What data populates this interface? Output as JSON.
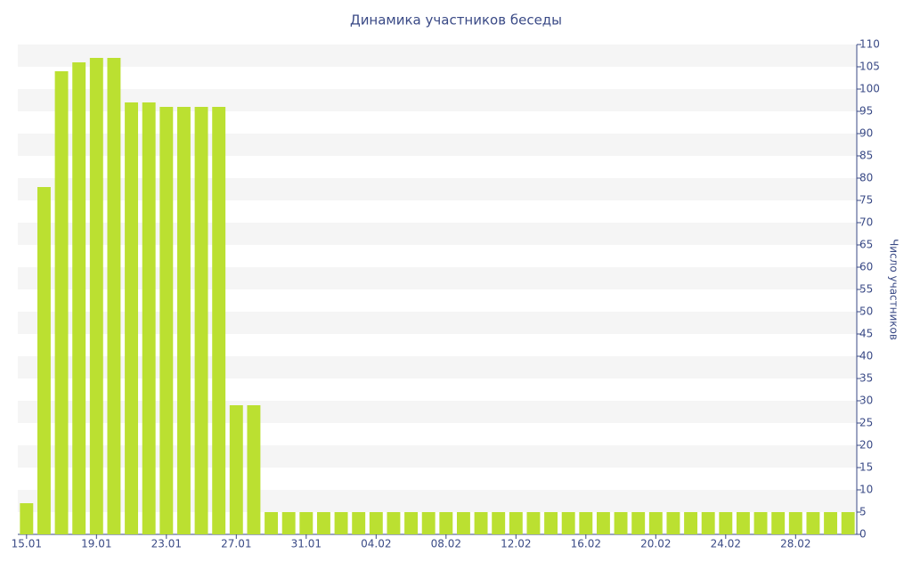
{
  "chart_data": {
    "type": "bar",
    "title": "Динамика участников беседы",
    "y_axis_label": "Число участников",
    "categories": [
      "15.01",
      null,
      null,
      null,
      "19.01",
      null,
      null,
      null,
      "23.01",
      null,
      null,
      null,
      "27.01",
      null,
      null,
      null,
      "31.01",
      null,
      null,
      null,
      "04.02",
      null,
      null,
      null,
      "08.02",
      null,
      null,
      null,
      "12.02",
      null,
      null,
      null,
      "16.02",
      null,
      null,
      null,
      "20.02",
      null,
      null,
      null,
      "24.02",
      null,
      null,
      null,
      "28.02",
      null,
      null,
      null
    ],
    "values": [
      7,
      78,
      104,
      106,
      107,
      107,
      97,
      97,
      96,
      96,
      96,
      96,
      29,
      29,
      5,
      5,
      5,
      5,
      5,
      5,
      5,
      5,
      5,
      5,
      5,
      5,
      5,
      5,
      5,
      5,
      5,
      5,
      5,
      5,
      5,
      5,
      5,
      5,
      5,
      5,
      5,
      5,
      5,
      5,
      5,
      5,
      5,
      5
    ],
    "color": "#bbe031",
    "ylim": [
      0,
      110
    ],
    "yticks": [
      0,
      5,
      10,
      15,
      20,
      25,
      30,
      35,
      40,
      45,
      50,
      55,
      60,
      65,
      70,
      75,
      80,
      85,
      90,
      95,
      100,
      105,
      110
    ],
    "grid": true
  }
}
